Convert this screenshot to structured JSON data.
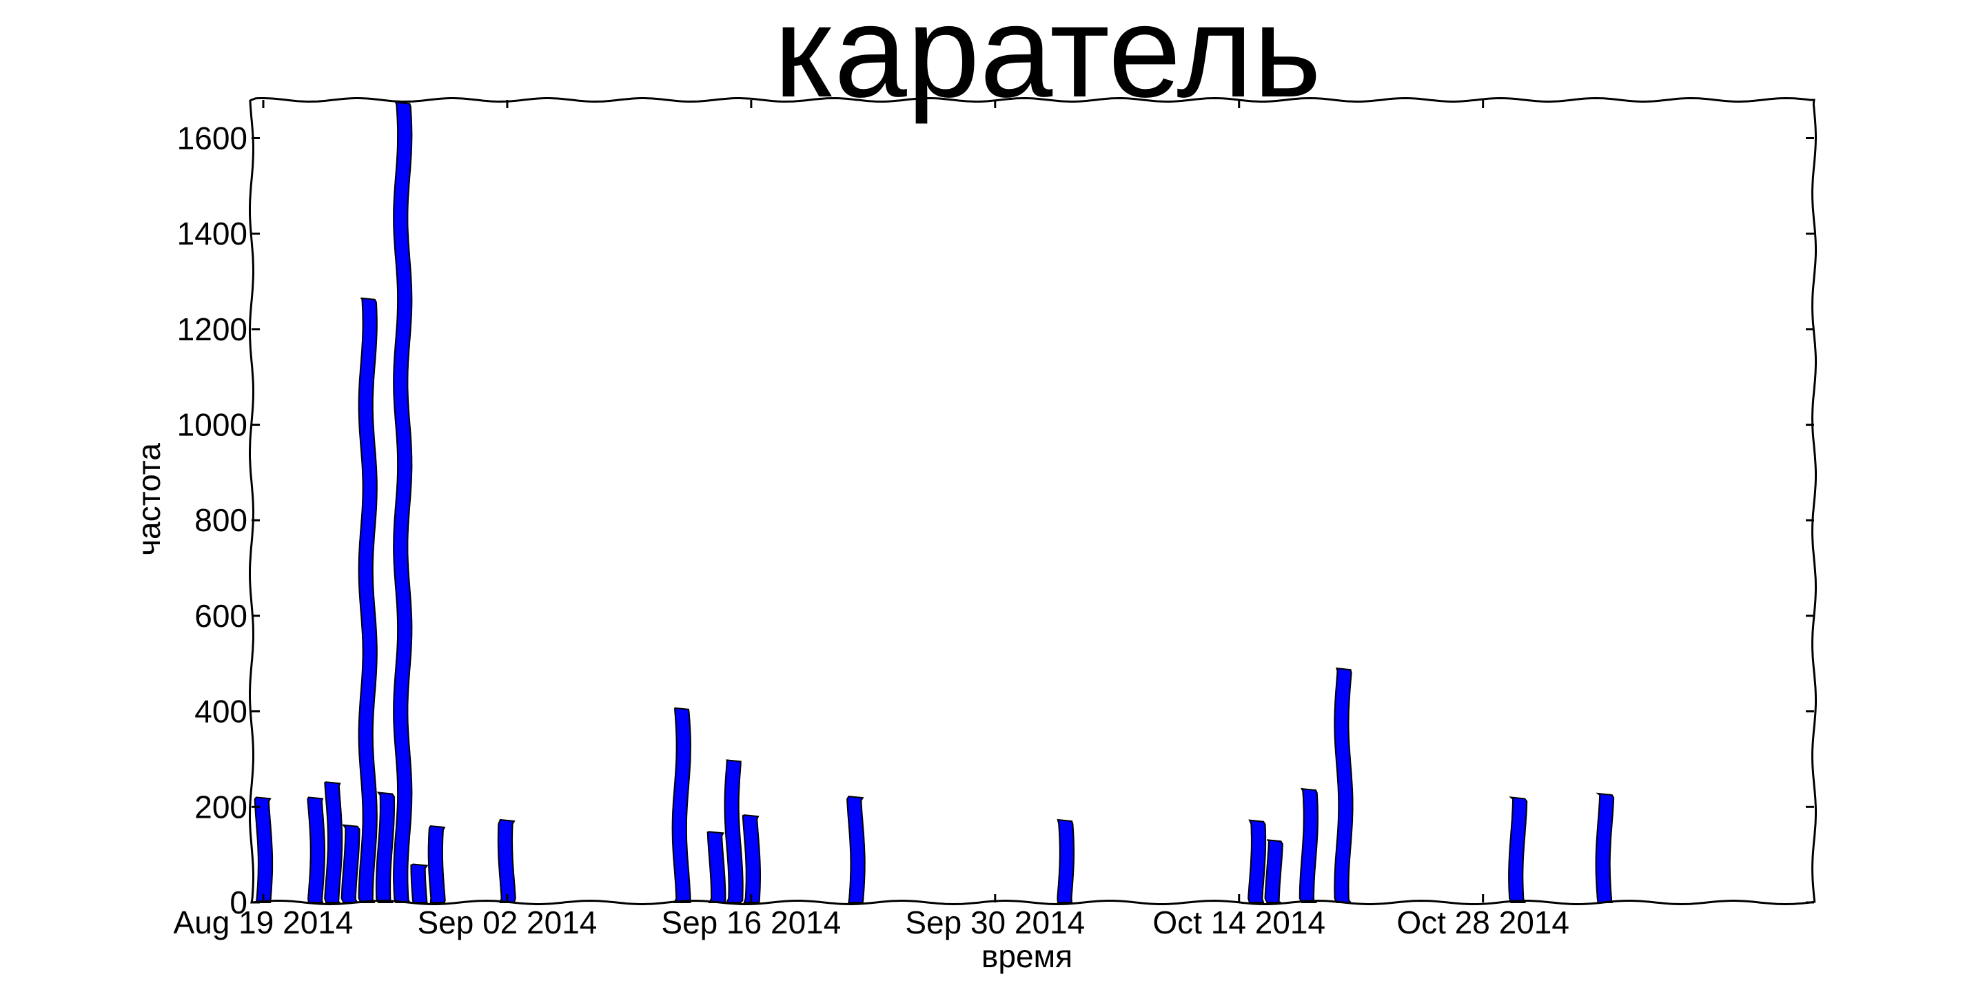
{
  "chart_data": {
    "type": "bar",
    "title": "каратель",
    "xlabel": "время",
    "ylabel": "частота",
    "x_axis": {
      "start": "2014-08-19",
      "end": "2014-11-16",
      "tick_dates": [
        "2014-08-19",
        "2014-09-02",
        "2014-09-16",
        "2014-09-30",
        "2014-10-14",
        "2014-10-28"
      ],
      "tick_labels": [
        "Aug 19 2014",
        "Sep 02 2014",
        "Sep 16 2014",
        "Sep 30 2014",
        "Oct 14 2014",
        "Oct 28 2014"
      ]
    },
    "y_axis": {
      "ylim": [
        0,
        1680
      ],
      "ticks": [
        0,
        200,
        400,
        600,
        800,
        1000,
        1200,
        1400,
        1600
      ]
    },
    "grid": false,
    "legend": "none",
    "bar_color": "#0000ff",
    "bar_edge_color": "#000000",
    "bars": [
      {
        "date": "2014-08-19",
        "value": 220
      },
      {
        "date": "2014-08-22",
        "value": 220
      },
      {
        "date": "2014-08-23",
        "value": 252
      },
      {
        "date": "2014-08-24",
        "value": 162
      },
      {
        "date": "2014-08-25",
        "value": 1265
      },
      {
        "date": "2014-08-26",
        "value": 230
      },
      {
        "date": "2014-08-27",
        "value": 1675
      },
      {
        "date": "2014-08-28",
        "value": 80
      },
      {
        "date": "2014-08-29",
        "value": 160
      },
      {
        "date": "2014-09-02",
        "value": 173
      },
      {
        "date": "2014-09-12",
        "value": 407
      },
      {
        "date": "2014-09-14",
        "value": 148
      },
      {
        "date": "2014-09-15",
        "value": 298
      },
      {
        "date": "2014-09-16",
        "value": 183
      },
      {
        "date": "2014-09-22",
        "value": 222
      },
      {
        "date": "2014-10-04",
        "value": 173
      },
      {
        "date": "2014-10-15",
        "value": 172
      },
      {
        "date": "2014-10-16",
        "value": 131
      },
      {
        "date": "2014-10-18",
        "value": 238
      },
      {
        "date": "2014-10-20",
        "value": 490
      },
      {
        "date": "2014-10-30",
        "value": 220
      },
      {
        "date": "2014-11-04",
        "value": 228
      }
    ]
  }
}
